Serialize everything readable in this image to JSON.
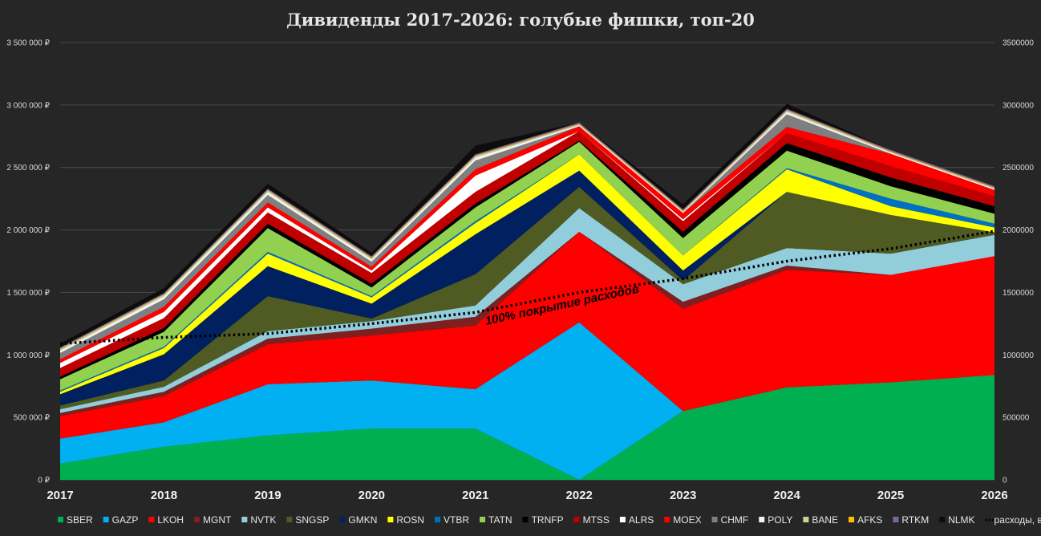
{
  "chart_data": {
    "type": "area",
    "stacked": true,
    "title": "Дивиденды 2017-2026: голубые фишки, топ-20",
    "x": [
      "2017",
      "2018",
      "2019",
      "2020",
      "2021",
      "2022",
      "2023",
      "2024",
      "2025",
      "2026"
    ],
    "ylim": [
      0,
      3500000
    ],
    "yticks_left": [
      "0 ₽",
      "500 000 ₽",
      "1 000 000 ₽",
      "1 500 000 ₽",
      "2 000 000 ₽",
      "2 500 000 ₽",
      "3 000 000 ₽",
      "3 500 000 ₽"
    ],
    "yticks_right": [
      "0",
      "500000",
      "1000000",
      "1500000",
      "2000000",
      "2500000",
      "3000000",
      "3500000"
    ],
    "grid": true,
    "legend_position": "bottom",
    "annotation": "100% покрытие расходов",
    "series": [
      {
        "name": "SBER",
        "color": "#00b050",
        "values": [
          130000,
          265000,
          355000,
          410000,
          410000,
          0,
          550000,
          740000,
          780000,
          840000
        ]
      },
      {
        "name": "GAZP",
        "color": "#00b0f0",
        "values": [
          200000,
          195000,
          410000,
          385000,
          315000,
          1260000,
          0,
          0,
          0,
          0
        ]
      },
      {
        "name": "LKOH",
        "color": "#ff0000",
        "values": [
          180000,
          210000,
          320000,
          360000,
          510000,
          725000,
          820000,
          940000,
          860000,
          950000
        ]
      },
      {
        "name": "MGNT",
        "color": "#7f1f1f",
        "values": [
          25000,
          35000,
          45000,
          55000,
          70000,
          0,
          55000,
          35000,
          0,
          0
        ]
      },
      {
        "name": "NVTK",
        "color": "#92cddc",
        "values": [
          30000,
          40000,
          60000,
          60000,
          90000,
          190000,
          140000,
          140000,
          170000,
          170000
        ]
      },
      {
        "name": "SNGSP",
        "color": "#4f5b23",
        "values": [
          30000,
          50000,
          280000,
          20000,
          250000,
          170000,
          30000,
          450000,
          310000,
          20000
        ]
      },
      {
        "name": "GMKN",
        "color": "#002060",
        "values": [
          90000,
          210000,
          240000,
          120000,
          320000,
          130000,
          80000,
          0,
          0,
          0
        ]
      },
      {
        "name": "ROSN",
        "color": "#ffff00",
        "values": [
          20000,
          50000,
          100000,
          50000,
          90000,
          130000,
          120000,
          180000,
          70000,
          40000
        ]
      },
      {
        "name": "VTBR",
        "color": "#0070c0",
        "values": [
          10000,
          10000,
          15000,
          10000,
          15000,
          0,
          0,
          10000,
          60000,
          30000
        ]
      },
      {
        "name": "TATN",
        "color": "#92d050",
        "values": [
          90000,
          120000,
          190000,
          70000,
          110000,
          100000,
          140000,
          140000,
          100000,
          80000
        ]
      },
      {
        "name": "TRNFP",
        "color": "#000000",
        "values": [
          20000,
          30000,
          35000,
          30000,
          30000,
          10000,
          50000,
          60000,
          70000,
          60000
        ]
      },
      {
        "name": "MTSS",
        "color": "#c00000",
        "values": [
          70000,
          80000,
          90000,
          85000,
          95000,
          75000,
          85000,
          80000,
          90000,
          80000
        ]
      },
      {
        "name": "ALRS",
        "color": "#ffffff",
        "values": [
          40000,
          50000,
          40000,
          20000,
          130000,
          0,
          15000,
          0,
          0,
          0
        ]
      },
      {
        "name": "MOEX",
        "color": "#ff0000",
        "values": [
          30000,
          40000,
          40000,
          30000,
          50000,
          40000,
          50000,
          50000,
          100000,
          50000
        ]
      },
      {
        "name": "CHMF",
        "color": "#7f7f7f",
        "values": [
          50000,
          60000,
          60000,
          40000,
          70000,
          0,
          0,
          100000,
          0,
          0
        ]
      },
      {
        "name": "POLY",
        "color": "#f2f2f2",
        "values": [
          20000,
          25000,
          25000,
          20000,
          25000,
          10000,
          10000,
          20000,
          10000,
          10000
        ]
      },
      {
        "name": "BANE",
        "color": "#c4d79b",
        "values": [
          10000,
          10000,
          10000,
          10000,
          10000,
          5000,
          5000,
          10000,
          5000,
          5000
        ]
      },
      {
        "name": "AFKS",
        "color": "#ffc000",
        "values": [
          5000,
          5000,
          5000,
          5000,
          5000,
          5000,
          5000,
          5000,
          5000,
          5000
        ]
      },
      {
        "name": "RTKM",
        "color": "#8064a2",
        "values": [
          10000,
          10000,
          10000,
          10000,
          10000,
          10000,
          10000,
          10000,
          10000,
          10000
        ]
      },
      {
        "name": "NLMK",
        "color": "#0d0d0d",
        "values": [
          30000,
          40000,
          40000,
          30000,
          70000,
          0,
          40000,
          40000,
          0,
          0
        ]
      }
    ],
    "expenses_line": {
      "name": "расходы, в год",
      "style": "dotted",
      "color": "#000000",
      "values": [
        1090000,
        1140000,
        1170000,
        1250000,
        1340000,
        1500000,
        1610000,
        1750000,
        1850000,
        1990000
      ]
    }
  }
}
